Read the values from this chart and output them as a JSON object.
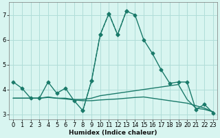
{
  "xlabel": "Humidex (Indice chaleur)",
  "bg_color": "#d8f5f0",
  "grid_color": "#b0ddd8",
  "line_color": "#1a7a6a",
  "xlim": [
    -0.5,
    23.5
  ],
  "ylim": [
    2.8,
    7.5
  ],
  "xticks": [
    0,
    1,
    2,
    3,
    4,
    5,
    6,
    7,
    8,
    9,
    10,
    11,
    12,
    13,
    14,
    15,
    16,
    17,
    18,
    19,
    20,
    21,
    22,
    23
  ],
  "yticks": [
    3,
    4,
    5,
    6,
    7
  ],
  "series": [
    {
      "x": [
        0,
        1,
        2,
        3,
        4,
        5,
        6,
        7,
        8,
        9,
        10,
        11,
        12,
        13,
        14,
        15,
        16,
        17,
        18,
        19,
        20,
        21,
        22,
        23
      ],
      "y": [
        4.3,
        4.05,
        3.65,
        3.65,
        4.3,
        3.85,
        4.05,
        3.55,
        3.15,
        4.35,
        6.2,
        7.05,
        6.2,
        7.15,
        7.0,
        6.0,
        5.45,
        4.8,
        4.25,
        4.3,
        4.3,
        3.2,
        3.4,
        3.05
      ],
      "marker": "D",
      "markersize": 2.5,
      "linewidth": 1.0,
      "linestyle": "-"
    },
    {
      "x": [
        8,
        9,
        10,
        11,
        12,
        13
      ],
      "y": [
        3.15,
        4.35,
        6.2,
        7.05,
        6.2,
        7.15
      ],
      "marker": "D",
      "markersize": 2.5,
      "linewidth": 1.0,
      "linestyle": "--"
    },
    {
      "x": [
        0,
        1,
        2,
        3,
        4,
        5,
        6,
        7,
        8,
        9,
        10,
        11,
        12,
        13,
        14,
        15,
        16,
        17,
        18,
        19,
        20,
        21,
        22,
        23
      ],
      "y": [
        3.65,
        3.65,
        3.65,
        3.65,
        3.7,
        3.65,
        3.65,
        3.6,
        3.6,
        3.65,
        3.75,
        3.8,
        3.85,
        3.9,
        3.95,
        4.0,
        4.05,
        4.1,
        4.15,
        4.2,
        3.6,
        3.25,
        3.2,
        3.1
      ],
      "marker": null,
      "markersize": 0,
      "linewidth": 1.0,
      "linestyle": "-"
    },
    {
      "x": [
        0,
        1,
        2,
        3,
        4,
        5,
        6,
        7,
        8,
        9,
        10,
        11,
        12,
        13,
        14,
        15,
        16,
        17,
        18,
        19,
        20,
        21,
        22,
        23
      ],
      "y": [
        3.65,
        3.65,
        3.65,
        3.65,
        3.68,
        3.65,
        3.62,
        3.58,
        3.55,
        3.55,
        3.58,
        3.6,
        3.62,
        3.65,
        3.68,
        3.7,
        3.65,
        3.6,
        3.55,
        3.5,
        3.45,
        3.35,
        3.25,
        3.1
      ],
      "marker": null,
      "markersize": 0,
      "linewidth": 1.0,
      "linestyle": "-"
    }
  ]
}
